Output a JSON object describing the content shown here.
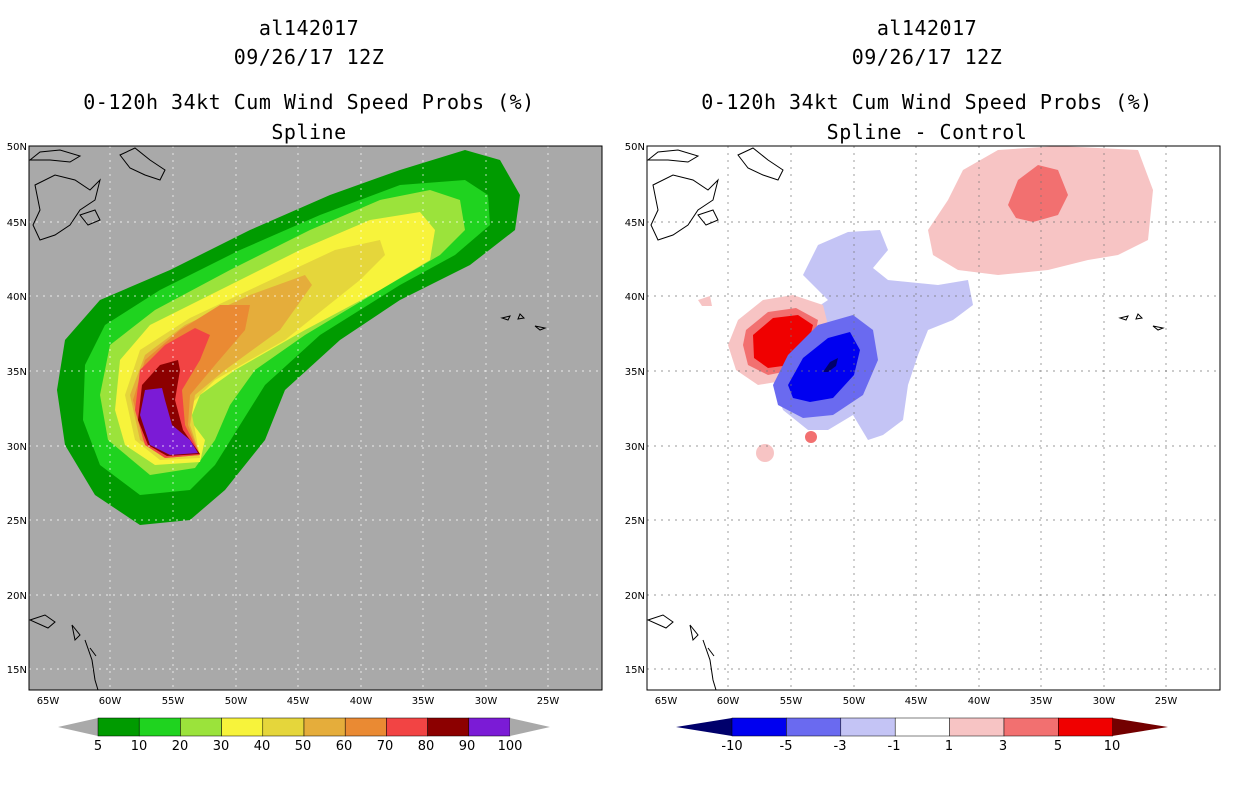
{
  "left": {
    "title_line1": "al142017",
    "title_line2": "09/26/17 12Z",
    "title_line3": "0-120h 34kt Cum Wind Speed Probs (%)",
    "title_line4": "Spline",
    "background_color": "#a9a9a9",
    "colorbar": {
      "colors": [
        "#009b00",
        "#1fd31f",
        "#9be33b",
        "#f7f33b",
        "#e5d63b",
        "#e5ad3b",
        "#ea8a33",
        "#f24444",
        "#8c0000",
        "#7b1bd6"
      ],
      "labels": [
        "5",
        "10",
        "20",
        "30",
        "40",
        "50",
        "60",
        "70",
        "80",
        "90",
        "100"
      ]
    }
  },
  "right": {
    "title_line1": "al142017",
    "title_line2": "09/26/17 12Z",
    "title_line3": "0-120h 34kt Cum Wind Speed Probs (%)",
    "title_line4": "Spline - Control",
    "background_color": "#ffffff",
    "colorbar": {
      "colors": [
        "#00006b",
        "#0000f0",
        "#6a6af0",
        "#c4c4f5",
        "#ffffff",
        "#f7c4c4",
        "#f27070",
        "#f00000",
        "#730000"
      ],
      "labels": [
        "-10",
        "-5",
        "-3",
        "-1",
        "1",
        "3",
        "5",
        "10"
      ]
    }
  },
  "axes": {
    "lat_labels": [
      "50N",
      "45N",
      "40N",
      "35N",
      "30N",
      "25N",
      "20N",
      "15N"
    ],
    "lon_labels": [
      "65W",
      "60W",
      "55W",
      "50W",
      "45W",
      "40W",
      "35W",
      "30W",
      "25W"
    ]
  }
}
